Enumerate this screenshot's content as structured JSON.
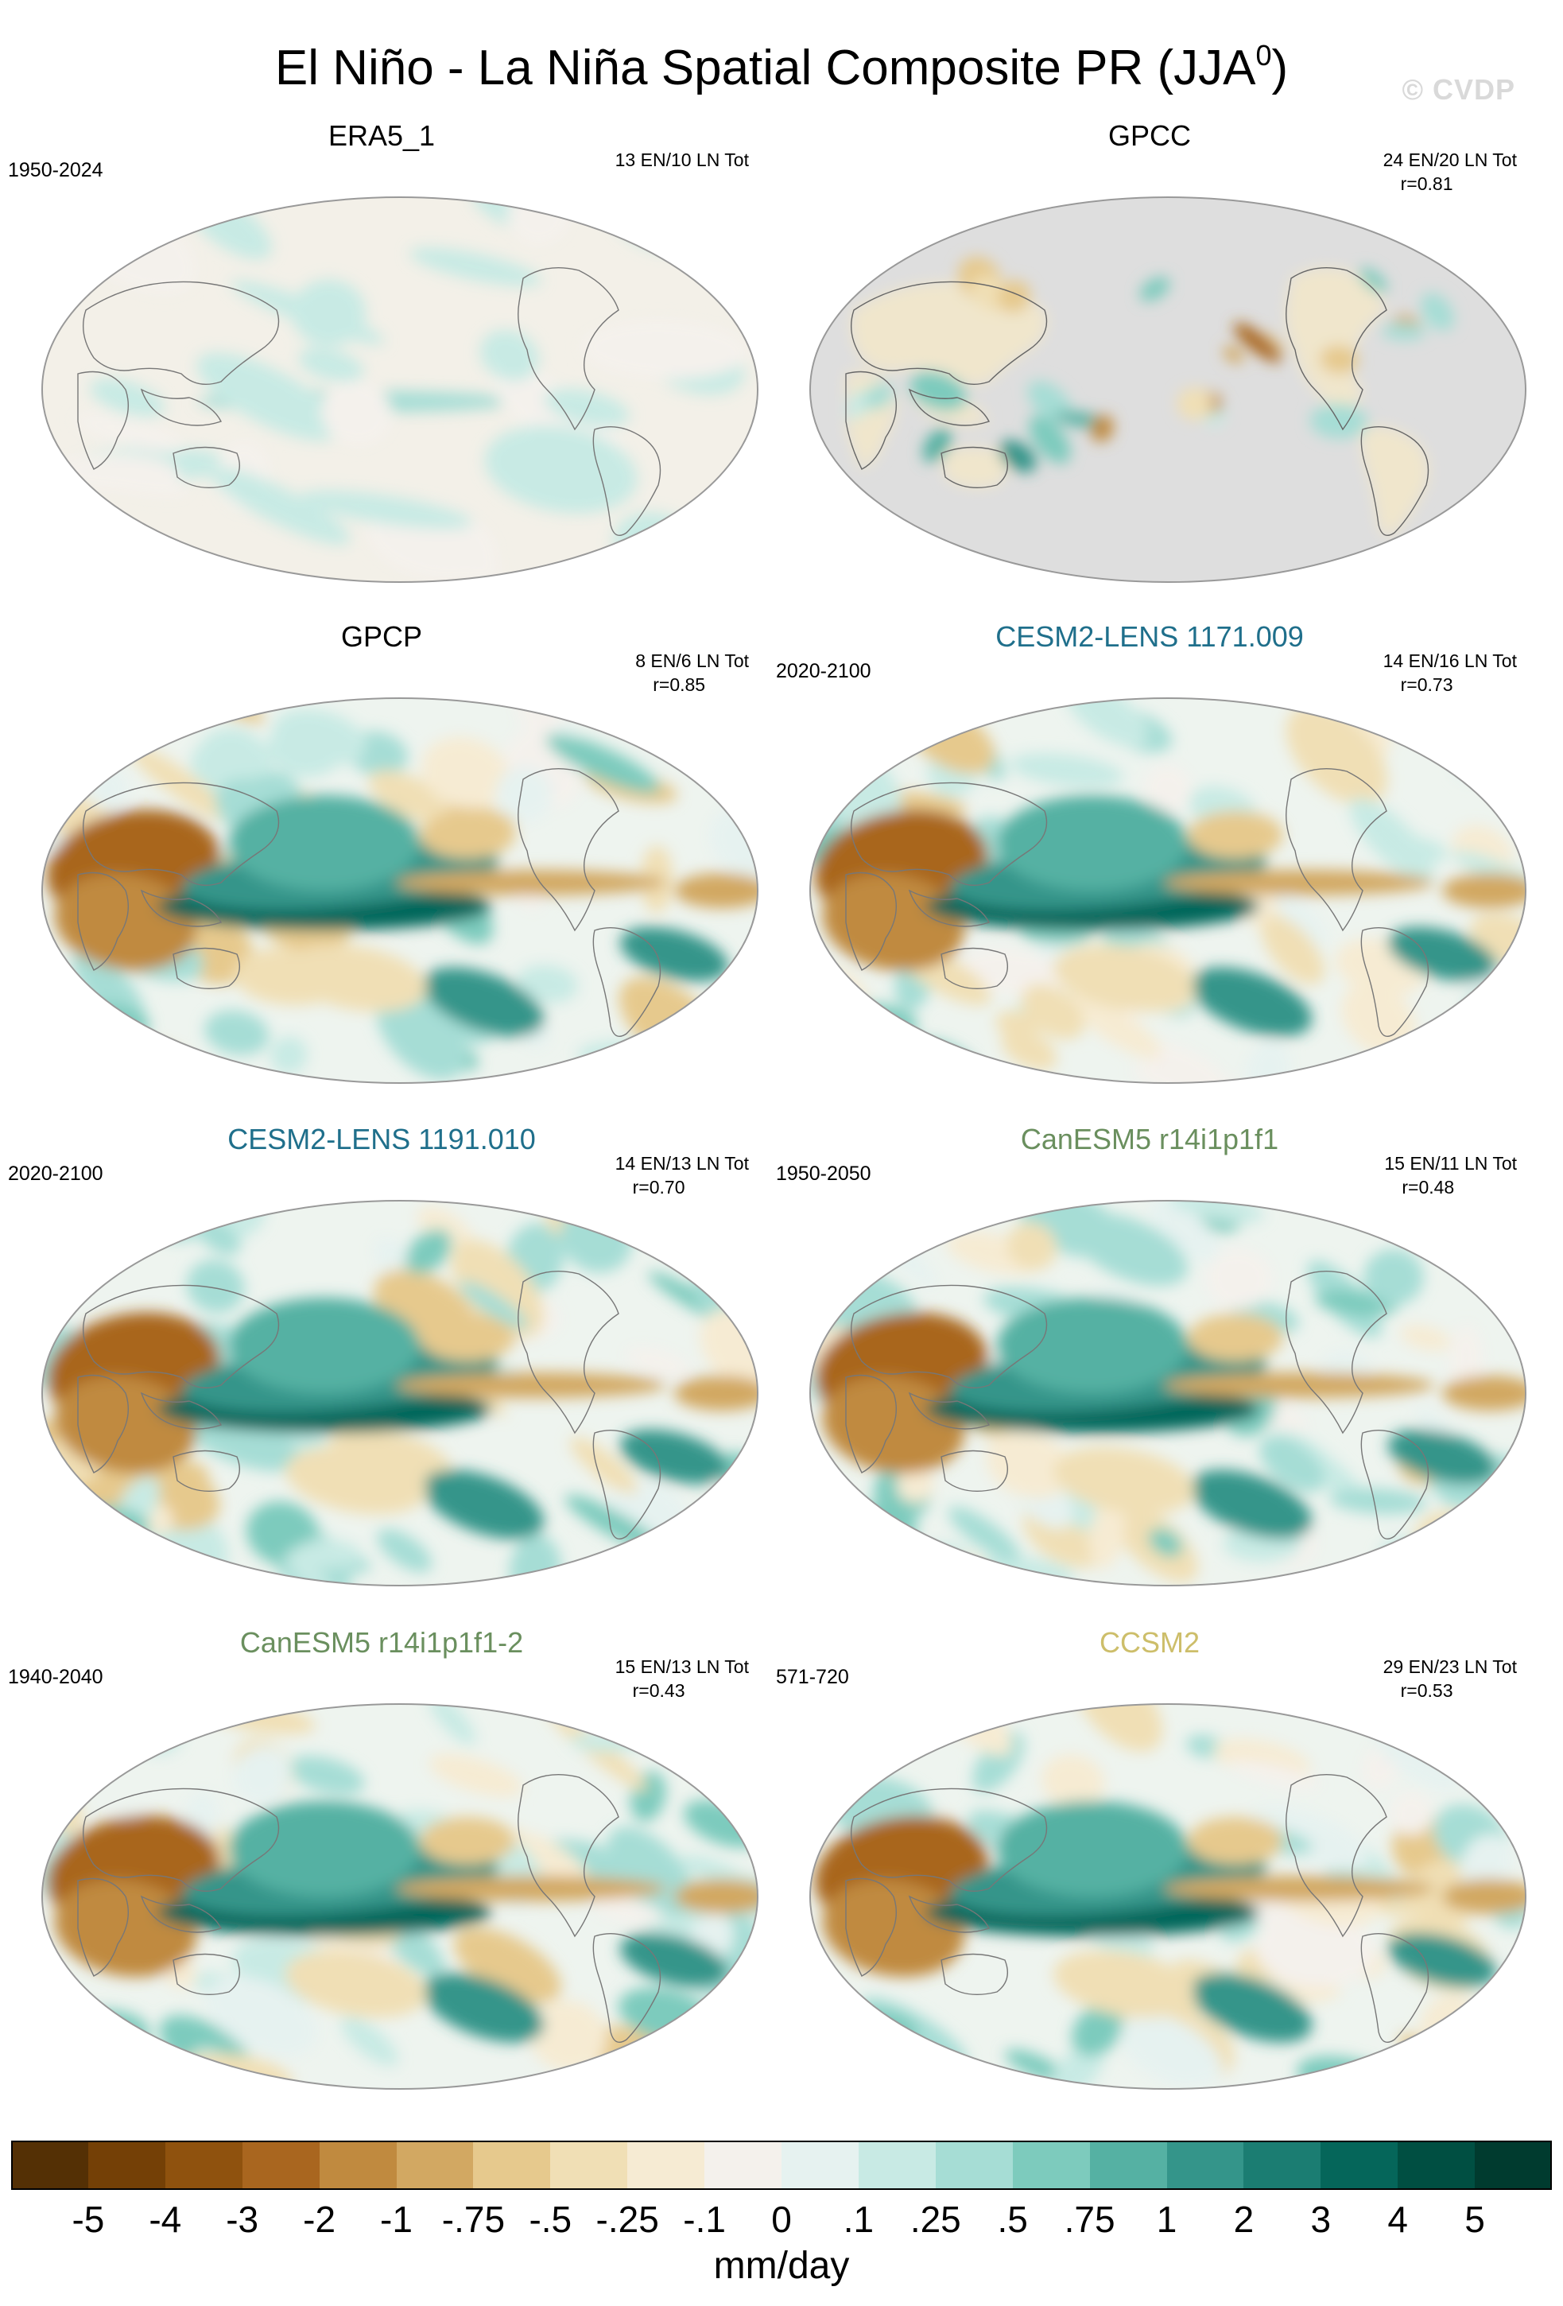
{
  "title_main": "El Niño - La Niña Spatial Composite PR (JJA",
  "title_sup": "0",
  "title_end": ")",
  "watermark": "© CVDP",
  "units": "mm/day",
  "palette": [
    "#543005",
    "#744006",
    "#8f520e",
    "#a9661f",
    "#c08a3f",
    "#d2a862",
    "#e6c98d",
    "#f0dfb5",
    "#f6ebd3",
    "#f4f1ec",
    "#e6f2f0",
    "#c8eae4",
    "#a6ddd5",
    "#7dcbbd",
    "#55b1a3",
    "#34958a",
    "#1b7d72",
    "#05665a",
    "#004f42",
    "#003b2f"
  ],
  "colorbar_labels": [
    "-5",
    "-4",
    "-3",
    "-2",
    "-1",
    "-.75",
    "-.5",
    "-.25",
    "-.1",
    "0",
    ".1",
    ".25",
    ".5",
    ".75",
    "1",
    "2",
    "3",
    "4",
    "5"
  ],
  "panels": [
    {
      "title": "ERA5_1",
      "title_color": "#000000",
      "period": "1950-2024",
      "counts": "13 EN/10 LN Tot",
      "r": "",
      "mode": "faint"
    },
    {
      "title": "GPCC",
      "title_color": "#000000",
      "period": "",
      "counts": "24 EN/20 LN Tot",
      "r": "r=0.81",
      "mode": "land"
    },
    {
      "title": "GPCP",
      "title_color": "#000000",
      "period": "",
      "counts": "8 EN/6 LN Tot",
      "r": "r=0.85",
      "mode": "full"
    },
    {
      "title": "CESM2-LENS 1171.009",
      "title_color": "#1f6f8b",
      "period": "2020-2100",
      "counts": "14 EN/16 LN Tot",
      "r": "r=0.73",
      "mode": "full"
    },
    {
      "title": "CESM2-LENS 1191.010",
      "title_color": "#1f6f8b",
      "period": "2020-2100",
      "counts": "14 EN/13 LN Tot",
      "r": "r=0.70",
      "mode": "full"
    },
    {
      "title": "CanESM5 r14i1p1f1",
      "title_color": "#6a8f5e",
      "period": "1950-2050",
      "counts": "15 EN/11 LN Tot",
      "r": "r=0.48",
      "mode": "full"
    },
    {
      "title": "CanESM5 r14i1p1f1-2",
      "title_color": "#6a8f5e",
      "period": "1940-2040",
      "counts": "15 EN/13 LN Tot",
      "r": "r=0.43",
      "mode": "full"
    },
    {
      "title": "CCSM2",
      "title_color": "#cdbe6a",
      "period": "571-720",
      "counts": "29 EN/23 LN Tot",
      "r": "r=0.53",
      "mode": "full"
    }
  ]
}
